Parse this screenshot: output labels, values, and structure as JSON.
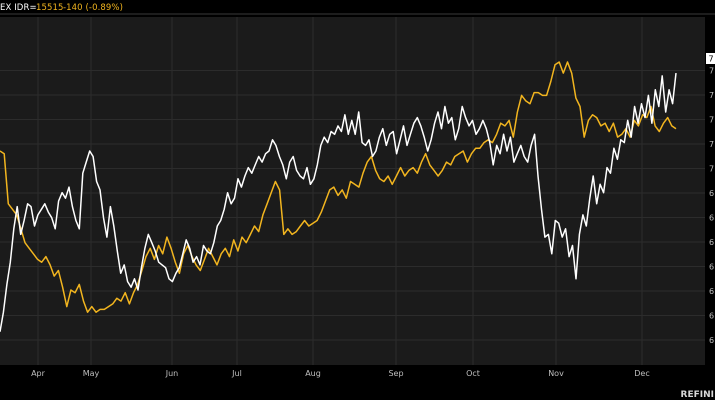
{
  "header": {
    "ticker_label": "EX IDR=",
    "price": "15515",
    "change": "-140 (-0.89%)"
  },
  "footer": {
    "brand": "REFINI"
  },
  "colors": {
    "background": "#000000",
    "plot_bg": "#1b1b1b",
    "grid": "#2c2c2c",
    "series_white": "#ffffff",
    "series_yellow": "#f2b51f",
    "header_text": "#f2b51f",
    "tick_text": "#bfbfbf"
  },
  "chart_data": {
    "type": "line",
    "xlabel": "",
    "ylabel": "",
    "grid": true,
    "x_ticks": [
      "Apr",
      "May",
      "Jun",
      "Jul",
      "Aug",
      "Sep",
      "Oct",
      "Nov",
      "Dec"
    ],
    "y_ticks": [
      "6",
      "6",
      "6",
      "6",
      "6",
      "6",
      "6",
      "7",
      "7",
      "7",
      "7",
      "7"
    ],
    "y_range": [
      0,
      100
    ],
    "last_value_flag": "7",
    "series": [
      {
        "color": "#ffffff",
        "values": [
          3,
          10,
          20,
          28,
          40,
          48,
          38,
          43,
          49,
          48,
          41,
          45,
          47,
          49,
          46,
          44,
          40,
          50,
          53,
          51,
          55,
          48,
          43,
          40,
          60,
          64,
          68,
          66,
          57,
          54,
          44,
          37,
          48,
          41,
          32,
          24,
          27,
          21,
          19,
          22,
          18,
          26,
          33,
          38,
          35,
          32,
          28,
          27,
          26,
          22,
          21,
          24,
          26,
          31,
          36,
          33,
          28,
          30,
          27,
          34,
          32,
          31,
          35,
          41,
          43,
          47,
          53,
          49,
          51,
          58,
          55,
          59,
          62,
          60,
          63,
          66,
          64,
          67,
          68,
          72,
          70,
          66,
          63,
          58,
          64,
          66,
          61,
          59,
          58,
          62,
          56,
          58,
          63,
          70,
          73,
          71,
          75,
          74,
          77,
          75,
          81,
          74,
          79,
          74,
          82,
          71,
          70,
          72,
          66,
          68,
          73,
          76,
          70,
          74,
          75,
          67,
          72,
          77,
          70,
          74,
          78,
          80,
          77,
          73,
          68,
          72,
          78,
          82,
          76,
          84,
          78,
          80,
          72,
          76,
          84,
          80,
          77,
          79,
          74,
          76,
          79,
          76,
          71,
          63,
          70,
          67,
          74,
          68,
          73,
          64,
          67,
          70,
          66,
          64,
          70,
          74,
          59,
          47,
          37,
          38,
          31,
          43,
          42,
          37,
          40,
          30,
          34,
          22,
          38,
          45,
          41,
          51,
          59,
          49,
          56,
          53,
          62,
          60,
          69,
          65,
          72,
          71,
          79,
          73,
          84,
          78,
          85,
          80,
          88,
          78,
          90,
          84,
          95,
          82,
          90,
          85,
          96
        ]
      },
      {
        "color": "#f2b51f",
        "values": [
          68,
          67,
          49,
          47,
          45,
          40,
          35,
          33,
          31,
          29,
          28,
          30,
          27,
          23,
          25,
          19,
          12,
          18,
          17,
          20,
          14,
          10,
          12,
          10,
          11,
          11,
          12,
          13,
          15,
          14,
          17,
          13,
          17,
          20,
          25,
          30,
          33,
          29,
          34,
          31,
          37,
          33,
          28,
          24,
          31,
          34,
          30,
          27,
          25,
          29,
          33,
          30,
          27,
          31,
          33,
          30,
          36,
          32,
          37,
          35,
          38,
          41,
          39,
          45,
          49,
          53,
          57,
          54,
          38,
          40,
          38,
          39,
          41,
          43,
          41,
          42,
          43,
          46,
          50,
          54,
          55,
          52,
          54,
          51,
          57,
          56,
          55,
          60,
          64,
          66,
          61,
          58,
          57,
          59,
          56,
          59,
          62,
          59,
          61,
          62,
          60,
          64,
          67,
          63,
          61,
          59,
          61,
          64,
          63,
          66,
          67,
          68,
          64,
          67,
          69,
          69,
          71,
          72,
          71,
          74,
          78,
          77,
          79,
          73,
          82,
          88,
          86,
          85,
          89,
          89,
          88,
          88,
          93,
          99,
          100,
          96,
          100,
          96,
          87,
          84,
          73,
          79,
          81,
          80,
          77,
          78,
          75,
          78,
          73,
          74,
          76,
          73,
          79,
          77,
          81,
          80,
          84,
          77,
          75,
          78,
          80,
          77,
          76
        ]
      }
    ]
  }
}
